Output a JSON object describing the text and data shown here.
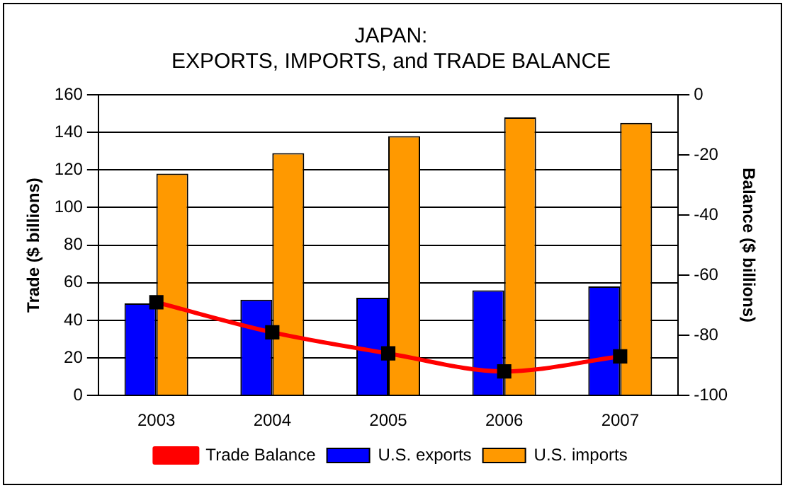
{
  "chart_data": {
    "type": "bar",
    "title": [
      "JAPAN:",
      "EXPORTS, IMPORTS, and TRADE BALANCE"
    ],
    "ylabel": "Trade ($ billions)",
    "y2label": "Balance ($ billions)",
    "categories": [
      "2003",
      "2004",
      "2005",
      "2006",
      "2007"
    ],
    "series": [
      {
        "name": "U.S. exports",
        "color": "#0000ff",
        "values": [
          49,
          51,
          52,
          56,
          58
        ]
      },
      {
        "name": "U.S. imports",
        "color": "#ff9900",
        "values": [
          118,
          129,
          138,
          148,
          145
        ]
      },
      {
        "name": "Trade Balance",
        "type": "line",
        "axis": "y2",
        "color": "#ff0000",
        "marker": "square",
        "values": [
          -69,
          -79,
          -86,
          -92,
          -87
        ]
      }
    ],
    "ylim": [
      0,
      160
    ],
    "yticks": [
      0,
      20,
      40,
      60,
      80,
      100,
      120,
      140,
      160
    ],
    "y2lim": [
      -100,
      0
    ],
    "y2ticks": [
      -100,
      -80,
      -60,
      -40,
      -20,
      0
    ],
    "grid": "y",
    "legend": "bottom"
  }
}
